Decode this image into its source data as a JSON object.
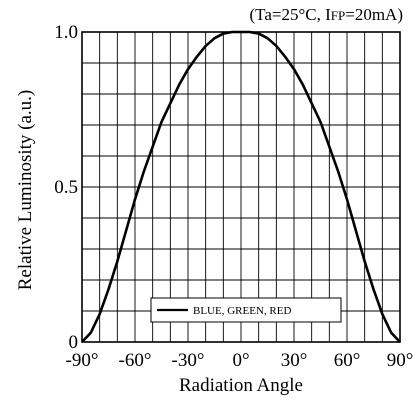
{
  "chart_data": {
    "type": "line",
    "title": "",
    "condition": {
      "open": "(Ta=25°C, I",
      "sub": "FP",
      "close": "=20mA)"
    },
    "xlabel": "Radiation Angle",
    "ylabel": "Relative Luminosity   (a.u.)",
    "xlim": [
      -90,
      90
    ],
    "ylim": [
      0,
      1.0
    ],
    "x_ticks": [
      {
        "value": -90,
        "label": "-90°"
      },
      {
        "value": -60,
        "label": "-60°"
      },
      {
        "value": -30,
        "label": "-30°"
      },
      {
        "value": 0,
        "label": "0°"
      },
      {
        "value": 30,
        "label": "30°"
      },
      {
        "value": 60,
        "label": "60°"
      },
      {
        "value": 90,
        "label": "90°"
      }
    ],
    "y_ticks": [
      {
        "value": 0,
        "label": "0"
      },
      {
        "value": 0.5,
        "label": "0.5"
      },
      {
        "value": 1.0,
        "label": "1.0"
      }
    ],
    "grid": true,
    "grid_x_step": 10,
    "grid_y_step": 0.1,
    "legend": {
      "position": "bottom-center"
    },
    "series": [
      {
        "name": "BLUE, GREEN, RED",
        "color": "#000000",
        "x": [
          -90,
          -85,
          -80,
          -75,
          -70,
          -65,
          -60,
          -55,
          -50,
          -45,
          -40,
          -35,
          -30,
          -25,
          -20,
          -15,
          -10,
          -5,
          0,
          5,
          10,
          15,
          20,
          25,
          30,
          35,
          40,
          45,
          50,
          55,
          60,
          65,
          70,
          75,
          80,
          85,
          90
        ],
        "y": [
          0.0,
          0.03,
          0.09,
          0.17,
          0.26,
          0.36,
          0.46,
          0.55,
          0.63,
          0.71,
          0.77,
          0.83,
          0.88,
          0.92,
          0.955,
          0.98,
          0.995,
          1.0,
          1.0,
          1.0,
          0.995,
          0.98,
          0.955,
          0.92,
          0.88,
          0.83,
          0.77,
          0.71,
          0.63,
          0.55,
          0.46,
          0.36,
          0.26,
          0.17,
          0.09,
          0.03,
          0.0
        ]
      }
    ]
  }
}
